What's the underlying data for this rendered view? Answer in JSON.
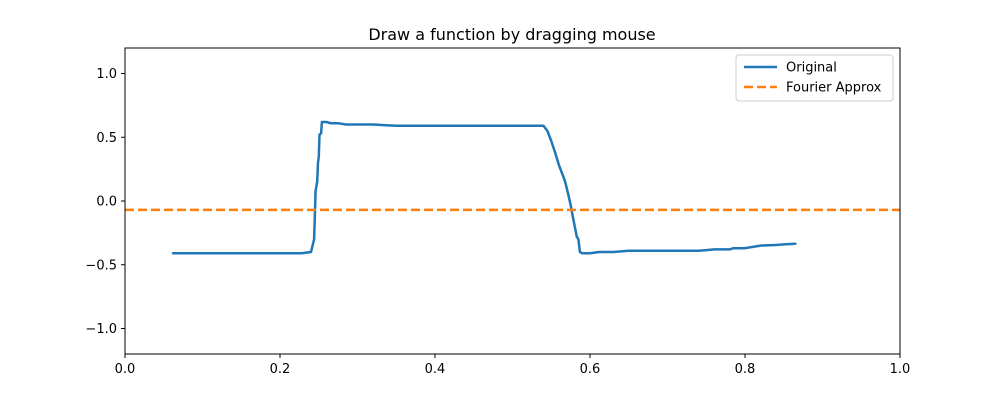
{
  "chart_data": {
    "type": "line",
    "title": "Draw a function by dragging mouse",
    "xlabel": "",
    "ylabel": "",
    "xlim": [
      0.0,
      1.0
    ],
    "ylim": [
      -1.2,
      1.2
    ],
    "x_ticks": [
      0.0,
      0.2,
      0.4,
      0.6,
      0.8,
      1.0
    ],
    "x_tick_labels": [
      "0.0",
      "0.2",
      "0.4",
      "0.6",
      "0.8",
      "1.0"
    ],
    "y_ticks": [
      1.0,
      0.5,
      0.0,
      -0.5,
      -1.0
    ],
    "y_tick_labels": [
      "1.0",
      "0.5",
      "0.0",
      "−0.5",
      "−1.0"
    ],
    "grid": false,
    "legend_position": "top-right",
    "series": [
      {
        "name": "Original",
        "color": "#1f77b4",
        "style": "solid",
        "points": [
          [
            0.062,
            -0.41
          ],
          [
            0.1,
            -0.41
          ],
          [
            0.15,
            -0.41
          ],
          [
            0.2,
            -0.41
          ],
          [
            0.228,
            -0.41
          ],
          [
            0.24,
            -0.4
          ],
          [
            0.244,
            -0.3
          ],
          [
            0.245,
            -0.1
          ],
          [
            0.246,
            0.08
          ],
          [
            0.248,
            0.15
          ],
          [
            0.249,
            0.3
          ],
          [
            0.25,
            0.35
          ],
          [
            0.251,
            0.52
          ],
          [
            0.253,
            0.53
          ],
          [
            0.254,
            0.62
          ],
          [
            0.26,
            0.62
          ],
          [
            0.265,
            0.61
          ],
          [
            0.275,
            0.61
          ],
          [
            0.285,
            0.6
          ],
          [
            0.32,
            0.6
          ],
          [
            0.35,
            0.59
          ],
          [
            0.45,
            0.59
          ],
          [
            0.54,
            0.59
          ],
          [
            0.545,
            0.55
          ],
          [
            0.55,
            0.47
          ],
          [
            0.555,
            0.38
          ],
          [
            0.56,
            0.28
          ],
          [
            0.565,
            0.2
          ],
          [
            0.568,
            0.15
          ],
          [
            0.572,
            0.05
          ],
          [
            0.575,
            -0.03
          ],
          [
            0.578,
            -0.13
          ],
          [
            0.58,
            -0.19
          ],
          [
            0.583,
            -0.28
          ],
          [
            0.585,
            -0.3
          ],
          [
            0.587,
            -0.4
          ],
          [
            0.59,
            -0.41
          ],
          [
            0.6,
            -0.41
          ],
          [
            0.612,
            -0.4
          ],
          [
            0.63,
            -0.4
          ],
          [
            0.65,
            -0.39
          ],
          [
            0.7,
            -0.39
          ],
          [
            0.74,
            -0.39
          ],
          [
            0.75,
            -0.385
          ],
          [
            0.76,
            -0.38
          ],
          [
            0.78,
            -0.38
          ],
          [
            0.785,
            -0.37
          ],
          [
            0.8,
            -0.37
          ],
          [
            0.81,
            -0.36
          ],
          [
            0.82,
            -0.35
          ],
          [
            0.84,
            -0.345
          ],
          [
            0.85,
            -0.34
          ],
          [
            0.865,
            -0.335
          ]
        ]
      },
      {
        "name": "Fourier Approx",
        "color": "#ff7f0e",
        "style": "dashed",
        "points": [
          [
            0.0,
            -0.07
          ],
          [
            1.0,
            -0.07
          ]
        ]
      }
    ]
  }
}
